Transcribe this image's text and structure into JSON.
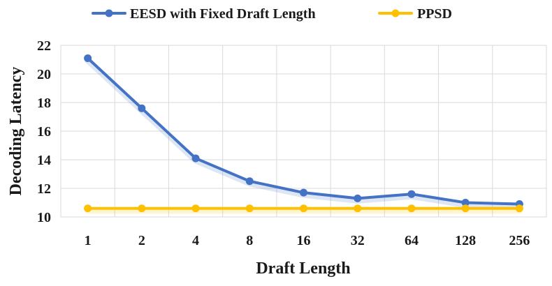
{
  "chart_data": {
    "type": "line",
    "categories": [
      "1",
      "2",
      "4",
      "8",
      "16",
      "32",
      "64",
      "128",
      "256"
    ],
    "series": [
      {
        "name": "EESD with Fixed Draft Length",
        "color": "#4472C4",
        "values": [
          21.1,
          17.6,
          14.1,
          12.5,
          11.7,
          11.3,
          11.6,
          11.0,
          10.9
        ]
      },
      {
        "name": "PPSD",
        "color": "#FFC000",
        "values": [
          10.6,
          10.6,
          10.6,
          10.6,
          10.6,
          10.6,
          10.6,
          10.6,
          10.6
        ]
      }
    ],
    "xlabel": "Draft Length",
    "ylabel": "Decoding Latency",
    "ylim": [
      10,
      22
    ],
    "yticks": [
      10,
      12,
      14,
      16,
      18,
      20,
      22
    ],
    "grid": true,
    "legend_position": "top"
  }
}
